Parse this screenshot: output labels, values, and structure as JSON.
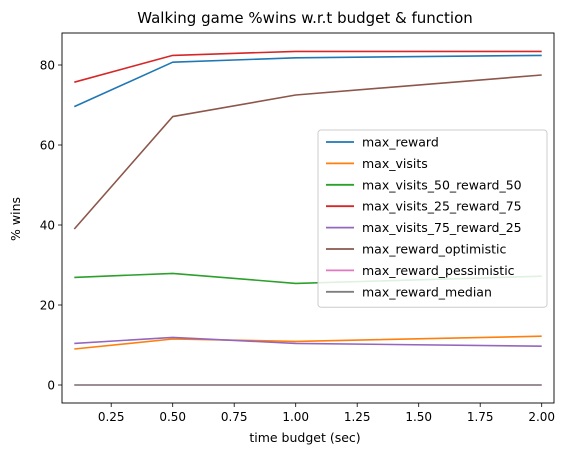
{
  "chart_data": {
    "type": "line",
    "title": "Walking game %wins w.r.t budget & function",
    "xlabel": "time budget (sec)",
    "ylabel": "% wins",
    "xlim": [
      0.05,
      2.05
    ],
    "ylim": [
      -4.5,
      88
    ],
    "xticks": [
      0.25,
      0.5,
      0.75,
      1.0,
      1.25,
      1.5,
      1.75,
      2.0
    ],
    "xtick_labels": [
      "0.25",
      "0.50",
      "0.75",
      "1.00",
      "1.25",
      "1.50",
      "1.75",
      "2.00"
    ],
    "yticks": [
      0,
      20,
      40,
      60,
      80
    ],
    "ytick_labels": [
      "0",
      "20",
      "40",
      "60",
      "80"
    ],
    "x": [
      0.1,
      0.5,
      1.0,
      2.0
    ],
    "grid": false,
    "legend_position": "center-right",
    "series": [
      {
        "name": "max_reward",
        "color": "#1f77b4",
        "values": [
          69.6,
          80.7,
          81.8,
          82.4
        ]
      },
      {
        "name": "max_visits",
        "color": "#ff7f0e",
        "values": [
          9.0,
          11.5,
          10.9,
          12.2
        ]
      },
      {
        "name": "max_visits_50_reward_50",
        "color": "#2ca02c",
        "values": [
          26.9,
          27.9,
          25.4,
          27.2
        ]
      },
      {
        "name": "max_visits_25_reward_75",
        "color": "#d62728",
        "values": [
          75.7,
          82.4,
          83.4,
          83.4
        ]
      },
      {
        "name": "max_visits_75_reward_25",
        "color": "#9467bd",
        "values": [
          10.4,
          11.9,
          10.4,
          9.7
        ]
      },
      {
        "name": "max_reward_optimistic",
        "color": "#8c564b",
        "values": [
          39.0,
          67.1,
          72.5,
          77.5
        ]
      },
      {
        "name": "max_reward_pessimistic",
        "color": "#e377c2",
        "values": [
          0.0,
          0.0,
          0.0,
          0.0
        ]
      },
      {
        "name": "max_reward_median",
        "color": "#7f7f7f",
        "values": [
          0.0,
          0.0,
          0.0,
          0.0
        ]
      }
    ]
  }
}
